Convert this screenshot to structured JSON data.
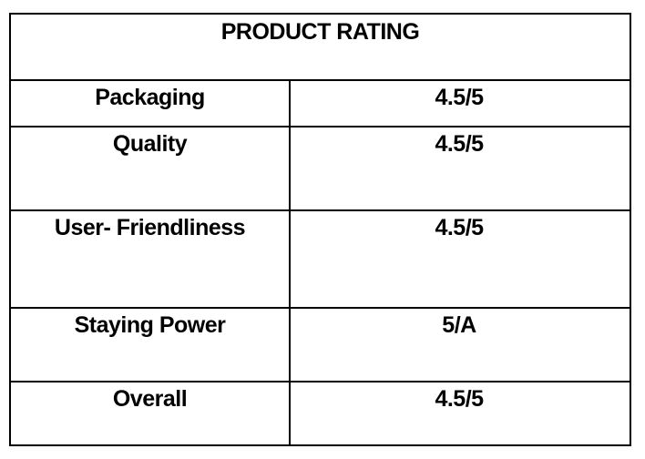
{
  "table": {
    "title": "PRODUCT RATING",
    "rows": [
      [
        "Packaging",
        "4.5/5"
      ],
      [
        "Quality",
        "4.5/5"
      ],
      [
        "User- Friendliness",
        "4.5/5"
      ],
      [
        "Staying Power",
        "5/A"
      ],
      [
        "Overall",
        "4.5/5"
      ]
    ]
  }
}
